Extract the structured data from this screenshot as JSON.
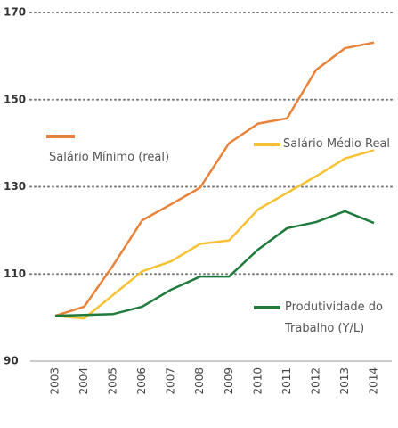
{
  "chart_data": {
    "type": "line",
    "categories": [
      "2003",
      "2004",
      "2005",
      "2006",
      "2007",
      "2008",
      "2009",
      "2010",
      "2011",
      "2012",
      "2013",
      "2014"
    ],
    "series": [
      {
        "name": "Salário Mínimo (real)",
        "color": "#e8833a",
        "values": [
          100.4,
          102.5,
          112,
          122.3,
          126,
          129.8,
          140,
          144.5,
          145.7,
          156.8,
          161.8,
          163.1
        ]
      },
      {
        "name": "Salário Médio Real",
        "color": "#f6c234",
        "values": [
          100.4,
          99.8,
          105.2,
          110.6,
          112.9,
          116.9,
          117.7,
          124.8,
          128.6,
          132.4,
          136.5,
          138.4
        ]
      },
      {
        "name": "Produtividade do Trabalho (Y/L)",
        "color": "#1f7a3c",
        "values": [
          100.4,
          100.6,
          100.8,
          102.5,
          106.4,
          109.4,
          109.4,
          115.6,
          120.5,
          121.9,
          124.4,
          121.7
        ]
      }
    ],
    "ylim": [
      90,
      170
    ],
    "yticks": [
      90,
      110,
      130,
      150,
      170
    ],
    "grid": true
  }
}
